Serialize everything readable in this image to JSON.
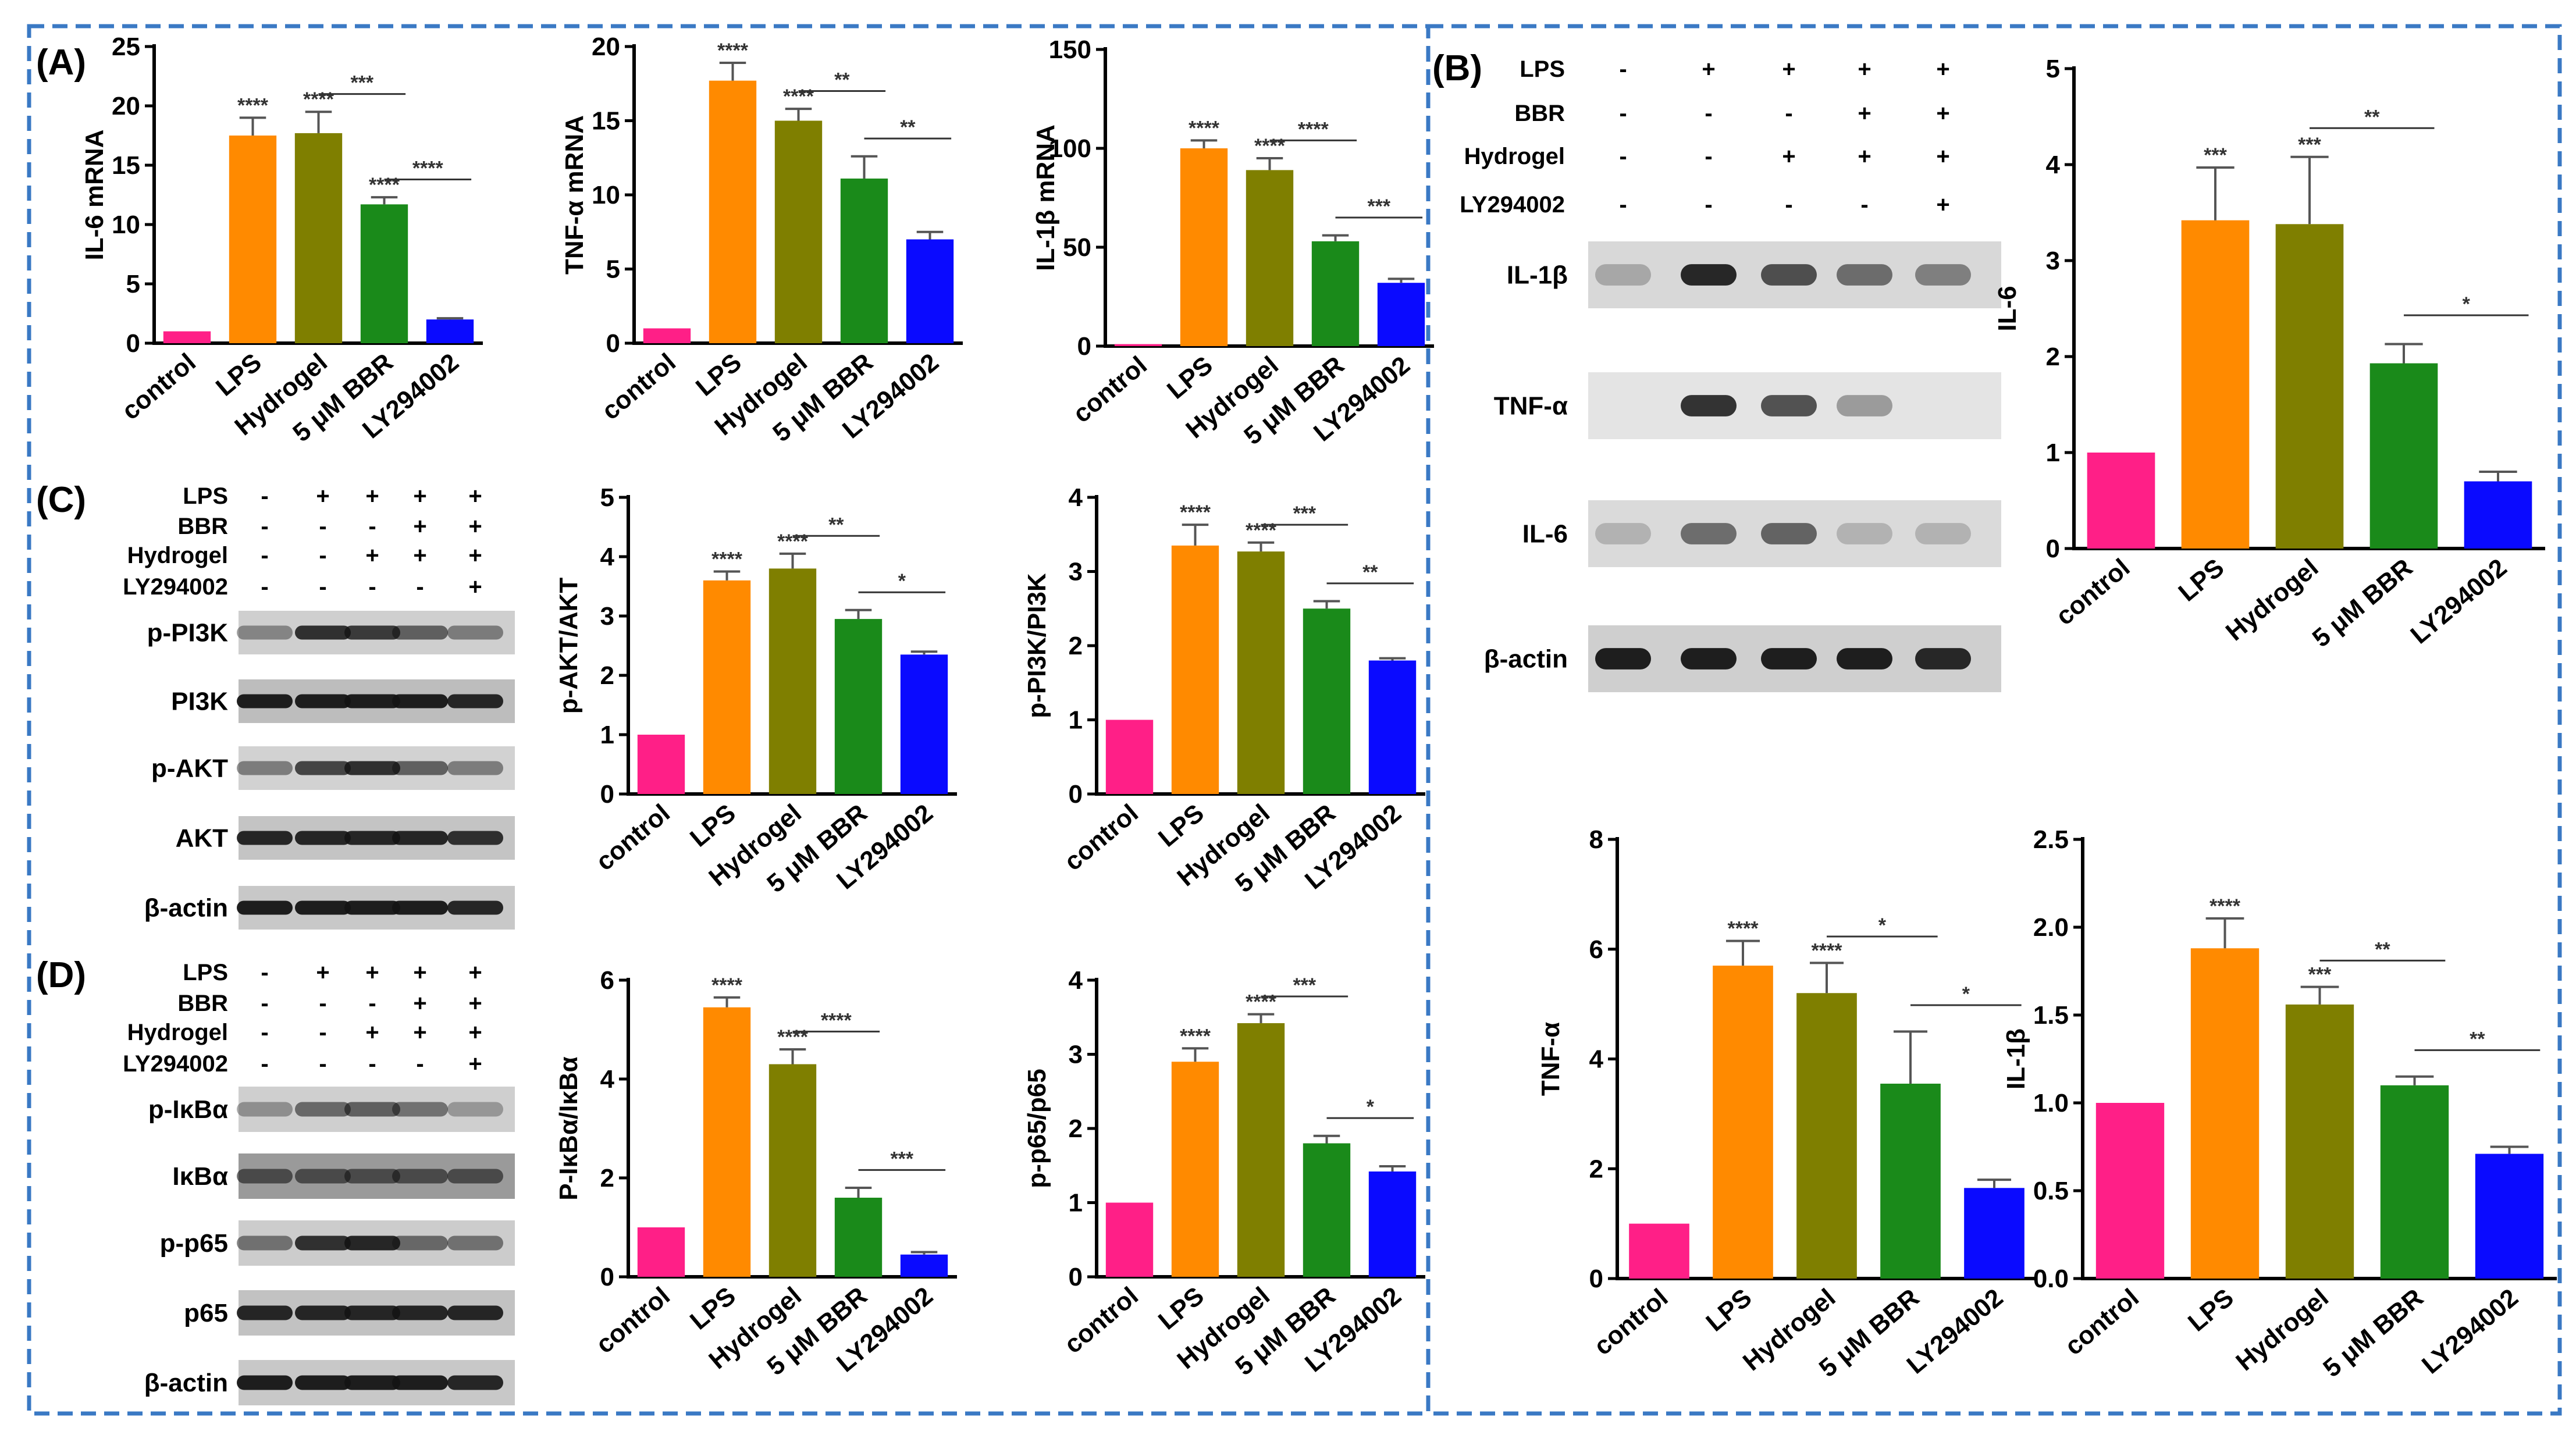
{
  "panel_labels": {
    "A": "(A)",
    "B": "(B)",
    "C": "(C)",
    "D": "(D)"
  },
  "colors": [
    "#ff1f87",
    "#ff8a00",
    "#7f7f00",
    "#1a8a1a",
    "#0a0aff"
  ],
  "treatment": {
    "rows": [
      "LPS",
      "BBR",
      "Hydrogel",
      "LY294002"
    ],
    "marks": [
      [
        "-",
        "+",
        "+",
        "+",
        "+"
      ],
      [
        "-",
        "-",
        "-",
        "+",
        "+"
      ],
      [
        "-",
        "-",
        "+",
        "+",
        "+"
      ],
      [
        "-",
        "-",
        "-",
        "-",
        "+"
      ]
    ]
  },
  "blots": {
    "B": [
      "IL-1β",
      "TNF-α",
      "IL-6",
      "β-actin"
    ],
    "C": [
      "p-PI3K",
      "PI3K",
      "p-AKT",
      "AKT",
      "β-actin"
    ],
    "D": [
      "p-IκBα",
      "IκBα",
      "p-p65",
      "p65",
      "β-actin"
    ]
  },
  "chart_data": [
    {
      "id": "il6mrna",
      "type": "bar",
      "ylabel": "IL-6 mRNA",
      "ylim": [
        0,
        25
      ],
      "yticks": [
        0,
        5,
        10,
        15,
        20,
        25
      ],
      "categories": [
        "control",
        "LPS",
        "Hydrogel",
        "5 μM BBR",
        "LY294002"
      ],
      "values": [
        1,
        17.5,
        17.7,
        11.7,
        2
      ],
      "errors": [
        0,
        1.5,
        1.8,
        0.6,
        0.1
      ],
      "stars": [
        "",
        "****",
        "****",
        "****",
        ""
      ],
      "comparisons": [
        {
          "from": 2,
          "to": 3,
          "label": "***"
        },
        {
          "from": 3,
          "to": 4,
          "label": "****"
        }
      ]
    },
    {
      "id": "tnfmrna",
      "type": "bar",
      "ylabel": "TNF-α mRNA",
      "ylim": [
        0,
        20
      ],
      "yticks": [
        0,
        5,
        10,
        15,
        20
      ],
      "categories": [
        "control",
        "LPS",
        "Hydrogel",
        "5 μM BBR",
        "LY294002"
      ],
      "values": [
        1,
        17.7,
        15,
        11.1,
        7
      ],
      "errors": [
        0,
        1.2,
        0.8,
        1.5,
        0.5
      ],
      "stars": [
        "",
        "****",
        "****",
        "",
        ""
      ],
      "comparisons": [
        {
          "from": 2,
          "to": 3,
          "label": "**"
        },
        {
          "from": 3,
          "to": 4,
          "label": "**"
        }
      ]
    },
    {
      "id": "il1bmrna",
      "type": "bar",
      "ylabel": "IL-1β mRNA",
      "ylim": [
        0,
        150
      ],
      "yticks": [
        0,
        50,
        100,
        150
      ],
      "categories": [
        "control",
        "LPS",
        "Hydrogel",
        "5 μM BBR",
        "LY294002"
      ],
      "values": [
        1,
        100,
        89,
        53,
        32
      ],
      "errors": [
        0,
        4,
        6,
        3,
        2
      ],
      "stars": [
        "",
        "****",
        "****",
        "",
        ""
      ],
      "comparisons": [
        {
          "from": 2,
          "to": 3,
          "label": "****"
        },
        {
          "from": 3,
          "to": 4,
          "label": "***"
        }
      ]
    },
    {
      "id": "pakt",
      "type": "bar",
      "ylabel": "p-AKT/AKT",
      "ylim": [
        0,
        5
      ],
      "yticks": [
        0,
        1,
        2,
        3,
        4,
        5
      ],
      "categories": [
        "control",
        "LPS",
        "Hydrogel",
        "5 μM BBR",
        "LY294002"
      ],
      "values": [
        1,
        3.6,
        3.8,
        2.95,
        2.35
      ],
      "errors": [
        0,
        0.15,
        0.25,
        0.15,
        0.05
      ],
      "stars": [
        "",
        "****",
        "****",
        "",
        ""
      ],
      "comparisons": [
        {
          "from": 2,
          "to": 3,
          "label": "**"
        },
        {
          "from": 3,
          "to": 4,
          "label": "*"
        }
      ]
    },
    {
      "id": "ppi3k",
      "type": "bar",
      "ylabel": "p-PI3K/PI3K",
      "ylim": [
        0,
        4
      ],
      "yticks": [
        0,
        1,
        2,
        3,
        4
      ],
      "categories": [
        "control",
        "LPS",
        "Hydrogel",
        "5 μM BBR",
        "LY294002"
      ],
      "values": [
        1,
        3.35,
        3.27,
        2.5,
        1.8
      ],
      "errors": [
        0,
        0.28,
        0.12,
        0.1,
        0.03
      ],
      "stars": [
        "",
        "****",
        "****",
        "",
        ""
      ],
      "comparisons": [
        {
          "from": 2,
          "to": 3,
          "label": "***"
        },
        {
          "from": 3,
          "to": 4,
          "label": "**"
        }
      ]
    },
    {
      "id": "pikb",
      "type": "bar",
      "ylabel": "P-IκBα/IκBα",
      "ylim": [
        0,
        6
      ],
      "yticks": [
        0,
        2,
        4,
        6
      ],
      "categories": [
        "control",
        "LPS",
        "Hydrogel",
        "5 μM BBR",
        "LY294002"
      ],
      "values": [
        1,
        5.45,
        4.3,
        1.6,
        0.45
      ],
      "errors": [
        0,
        0.2,
        0.3,
        0.2,
        0.05
      ],
      "stars": [
        "",
        "****",
        "****",
        "",
        ""
      ],
      "comparisons": [
        {
          "from": 2,
          "to": 3,
          "label": "****"
        },
        {
          "from": 3,
          "to": 4,
          "label": "***"
        }
      ]
    },
    {
      "id": "pp65",
      "type": "bar",
      "ylabel": "p-p65/p65",
      "ylim": [
        0,
        4
      ],
      "yticks": [
        0,
        1,
        2,
        3,
        4
      ],
      "categories": [
        "control",
        "LPS",
        "Hydrogel",
        "5 μM BBR",
        "LY294002"
      ],
      "values": [
        1,
        2.9,
        3.42,
        1.8,
        1.42
      ],
      "errors": [
        0,
        0.18,
        0.12,
        0.1,
        0.07
      ],
      "stars": [
        "",
        "****",
        "****",
        "",
        ""
      ],
      "comparisons": [
        {
          "from": 2,
          "to": 3,
          "label": "***"
        },
        {
          "from": 3,
          "to": 4,
          "label": "*"
        }
      ]
    },
    {
      "id": "il6",
      "type": "bar",
      "ylabel": "IL-6",
      "ylim": [
        0,
        5
      ],
      "yticks": [
        0,
        1,
        2,
        3,
        4,
        5
      ],
      "categories": [
        "control",
        "LPS",
        "Hydrogel",
        "5 μM BBR",
        "LY294002"
      ],
      "values": [
        1,
        3.42,
        3.38,
        1.93,
        0.7
      ],
      "errors": [
        0,
        0.55,
        0.7,
        0.2,
        0.1
      ],
      "stars": [
        "",
        "***",
        "***",
        "",
        ""
      ],
      "comparisons": [
        {
          "from": 2,
          "to": 3,
          "label": "**"
        },
        {
          "from": 3,
          "to": 4,
          "label": "*"
        }
      ]
    },
    {
      "id": "tnf",
      "type": "bar",
      "ylabel": "TNF-α",
      "ylim": [
        0,
        8
      ],
      "yticks": [
        0,
        2,
        4,
        6,
        8
      ],
      "categories": [
        "control",
        "LPS",
        "Hydrogel",
        "5 μM BBR",
        "LY294002"
      ],
      "values": [
        1,
        5.7,
        5.2,
        3.55,
        1.65
      ],
      "errors": [
        0,
        0.45,
        0.55,
        0.95,
        0.15
      ],
      "stars": [
        "",
        "****",
        "****",
        "",
        ""
      ],
      "comparisons": [
        {
          "from": 2,
          "to": 3,
          "label": "*"
        },
        {
          "from": 3,
          "to": 4,
          "label": "*"
        }
      ]
    },
    {
      "id": "il1b",
      "type": "bar",
      "ylabel": "IL-1β",
      "ylim": [
        0,
        2.5
      ],
      "yticks": [
        0.0,
        0.5,
        1.0,
        1.5,
        2.0,
        2.5
      ],
      "ytickDecimals": 1,
      "categories": [
        "control",
        "LPS",
        "Hydrogel",
        "5 μM BBR",
        "LY294002"
      ],
      "values": [
        1,
        1.88,
        1.56,
        1.1,
        0.71
      ],
      "errors": [
        0,
        0.17,
        0.1,
        0.05,
        0.04
      ],
      "stars": [
        "",
        "****",
        "***",
        "",
        ""
      ],
      "comparisons": [
        {
          "from": 2,
          "to": 3,
          "label": "**"
        },
        {
          "from": 3,
          "to": 4,
          "label": "**"
        }
      ]
    }
  ]
}
